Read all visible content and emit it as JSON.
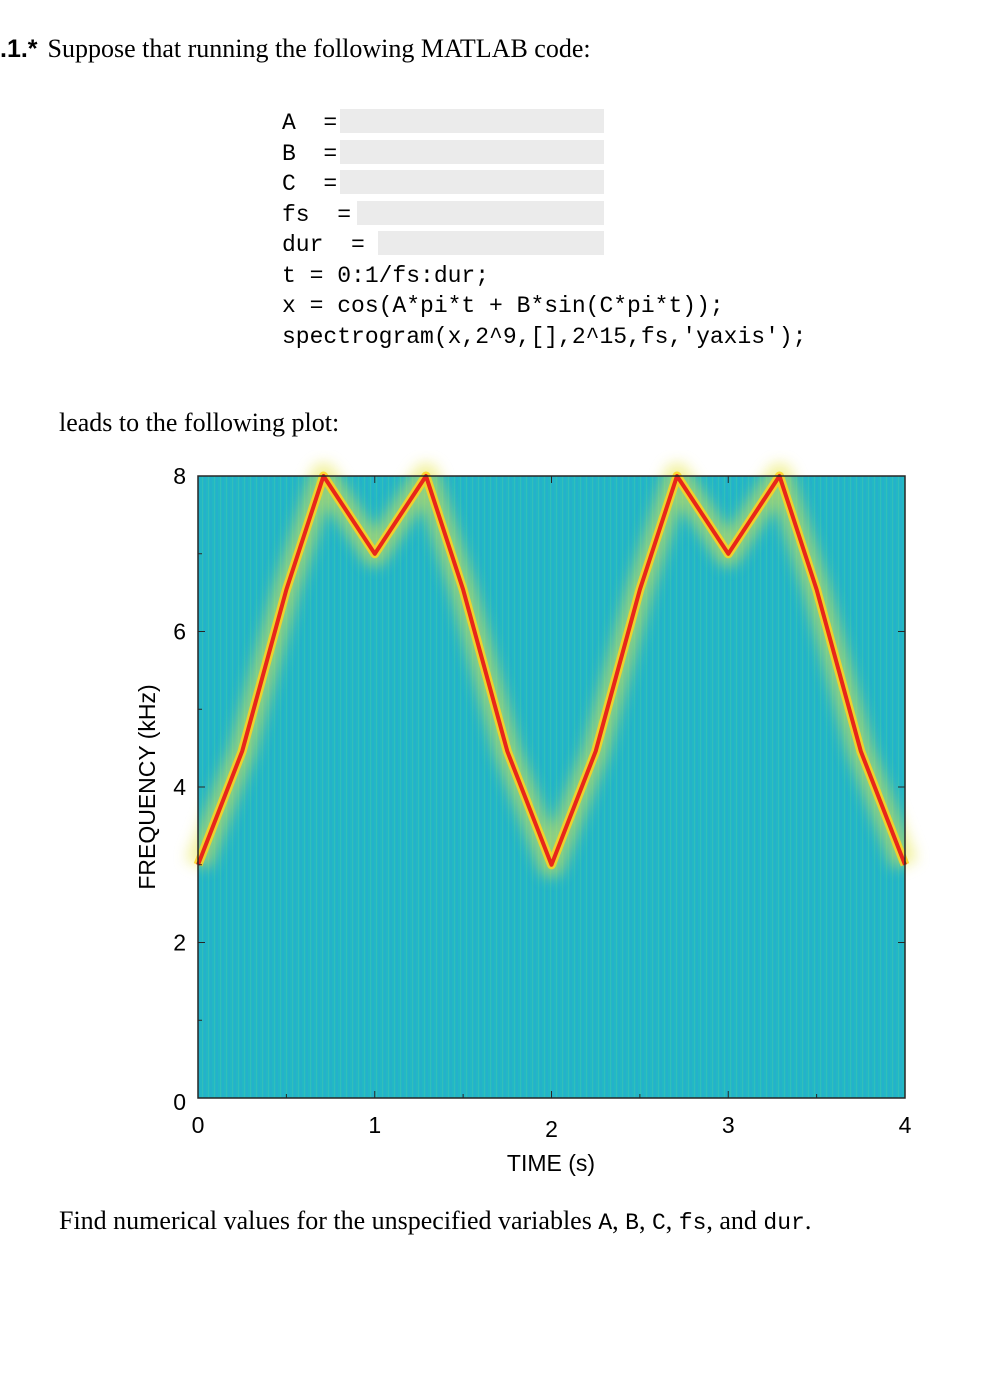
{
  "problem": {
    "number": ".1.*",
    "intro": "Suppose that running the following MATLAB code:"
  },
  "code": [
    {
      "text": "A  =",
      "blank": true
    },
    {
      "text": "B  =",
      "blank": true
    },
    {
      "text": "C  =",
      "blank": true
    },
    {
      "text": "fs  =",
      "blank": true
    },
    {
      "text": "dur  =",
      "blank": true
    },
    {
      "text": "t = 0:1/fs:dur;",
      "blank": false
    },
    {
      "text": "x = cos(A*pi*t + B*sin(C*pi*t));",
      "blank": false
    },
    {
      "text": "spectrogram(x,2^9,[],2^15,fs,'yaxis');",
      "blank": false
    }
  ],
  "lead_text": "leads to the following plot:",
  "question": {
    "before": "Find numerical values for the unspecified variables ",
    "vars": [
      "A",
      "B",
      "C",
      "fs",
      "dur"
    ],
    "sep1": ", ",
    "and": ", and ",
    "end": "."
  },
  "chart_data": {
    "type": "heatmap",
    "title": "",
    "xlabel": "TIME (s)",
    "ylabel": "FREQUENCY (kHz)",
    "xlim": [
      0,
      4
    ],
    "ylim": [
      0,
      8
    ],
    "x_ticks": [
      0,
      1,
      2,
      3,
      4
    ],
    "y_ticks": [
      0,
      2,
      4,
      6,
      8
    ],
    "x_tick_labels": [
      "0",
      "1",
      "2",
      "3",
      "4"
    ],
    "y_tick_labels": [
      "0",
      "2",
      "4",
      "6",
      "8"
    ],
    "grid": false,
    "background_color": "#1fb6c8",
    "series": [
      {
        "x": [
          0,
          0.25,
          0.5,
          0.71,
          1.0,
          1.29,
          1.5,
          1.75,
          2.0,
          2.25,
          2.5,
          2.71,
          3.0,
          3.29,
          3.5,
          3.75,
          4.0
        ],
        "y": [
          3.0,
          4.46,
          6.54,
          8.0,
          7.0,
          8.0,
          6.54,
          4.46,
          3.0,
          4.46,
          6.54,
          8.0,
          7.0,
          8.0,
          6.54,
          4.46,
          3.0
        ],
        "color": "#e8261a",
        "description_note_free": true
      }
    ]
  }
}
